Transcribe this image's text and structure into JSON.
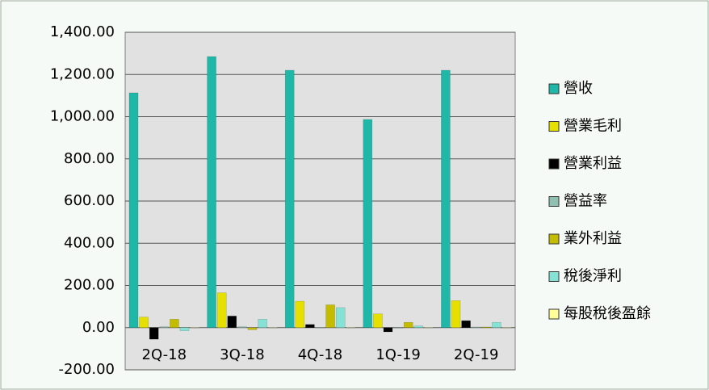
{
  "chart_data": {
    "type": "bar",
    "categories": [
      "2Q-18",
      "3Q-18",
      "4Q-18",
      "1Q-19",
      "2Q-19"
    ],
    "series": [
      {
        "name": "營收",
        "color": "#1fb8a8",
        "values": [
          1113,
          1285,
          1220,
          987,
          1220
        ]
      },
      {
        "name": "營業毛利",
        "color": "#e6e000",
        "values": [
          50,
          165,
          125,
          65,
          128
        ]
      },
      {
        "name": "營業利益",
        "color": "#000000",
        "values": [
          -55,
          55,
          15,
          -20,
          33
        ]
      },
      {
        "name": "營益率",
        "color": "#8fc0b2",
        "values": [
          4,
          4,
          1,
          -2,
          3
        ]
      },
      {
        "name": "業外利益",
        "color": "#c4bc00",
        "values": [
          40,
          -10,
          108,
          25,
          3
        ]
      },
      {
        "name": "稅後淨利",
        "color": "#86e2d4",
        "values": [
          -15,
          40,
          95,
          8,
          25
        ]
      },
      {
        "name": "每股稅後盈餘",
        "color": "#ffff99",
        "values": [
          1,
          1,
          1,
          1,
          1
        ]
      }
    ],
    "ylim": [
      -200,
      1400
    ],
    "yticks": [
      {
        "value": -200,
        "label": "-200.00"
      },
      {
        "value": 0,
        "label": "0.00"
      },
      {
        "value": 200,
        "label": "200.00"
      },
      {
        "value": 400,
        "label": "400.00"
      },
      {
        "value": 600,
        "label": "600.00"
      },
      {
        "value": 800,
        "label": "800.00"
      },
      {
        "value": 1000,
        "label": "1,000.00"
      },
      {
        "value": 1200,
        "label": "1,200.00"
      },
      {
        "value": 1400,
        "label": "1,400.00"
      }
    ],
    "grid": true,
    "legend": "right"
  }
}
